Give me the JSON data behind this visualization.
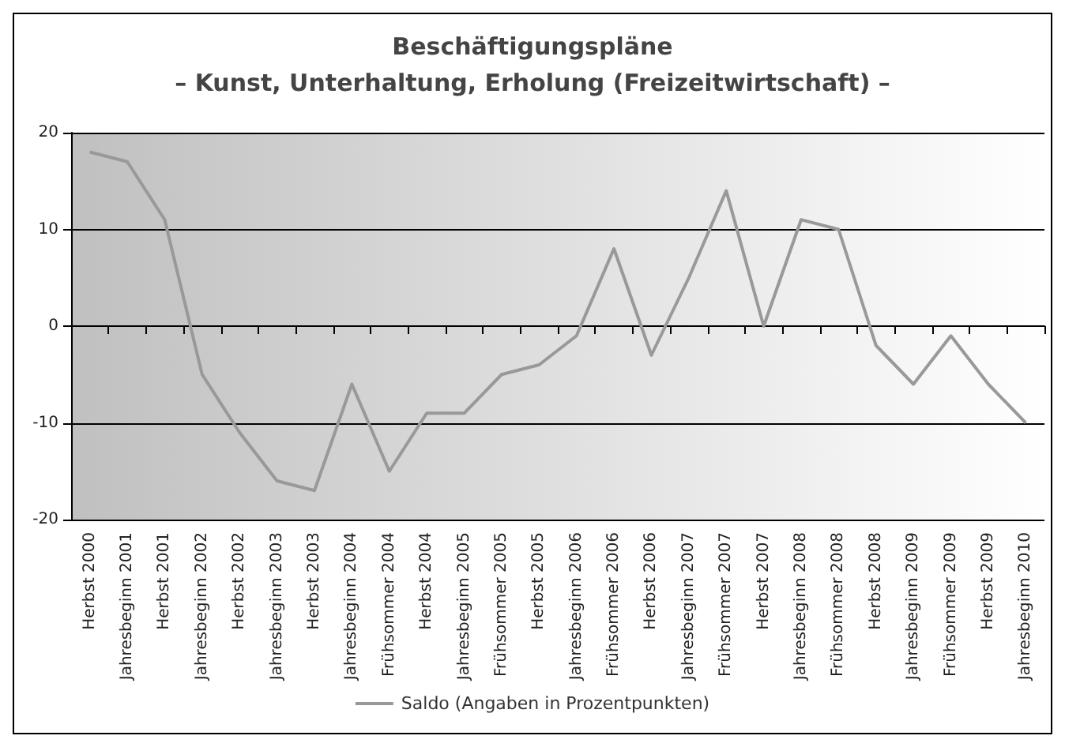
{
  "chart_data": {
    "type": "line",
    "title": "Beschäftigungspläne",
    "subtitle": "– Kunst, Unterhaltung, Erholung (Freizeitwirtschaft) –",
    "categories": [
      "Herbst 2000",
      "Jahresbeginn 2001",
      "Herbst 2001",
      "Jahresbeginn 2002",
      "Herbst 2002",
      "Jahresbeginn 2003",
      "Herbst 2003",
      "Jahresbeginn 2004",
      "Frühsommer 2004",
      "Herbst 2004",
      "Jahresbeginn 2005",
      "Frühsommer 2005",
      "Herbst 2005",
      "Jahresbeginn 2006",
      "Frühsommer 2006",
      "Herbst 2006",
      "Jahresbeginn 2007",
      "Frühsommer 2007",
      "Herbst 2007",
      "Jahresbeginn 2008",
      "Frühsommer 2008",
      "Herbst 2008",
      "Jahresbeginn 2009",
      "Frühsommer 2009",
      "Herbst 2009",
      "Jahresbeginn 2010"
    ],
    "series": [
      {
        "name": "Saldo (Angaben in Prozentpunkten)",
        "color": "#999999",
        "values": [
          18,
          17,
          11,
          -5,
          -11,
          -16,
          -17,
          -6,
          -15,
          -9,
          -9,
          -5,
          -4,
          -1,
          8,
          -3,
          5,
          14,
          0,
          11,
          10,
          -2,
          -6,
          -1,
          -6,
          -10
        ]
      }
    ],
    "ylim": [
      -20,
      20
    ],
    "yticks": [
      -20,
      -10,
      0,
      10,
      20
    ],
    "grid": "y",
    "legend": "bottom",
    "marker": "none",
    "line_style": "solid"
  }
}
